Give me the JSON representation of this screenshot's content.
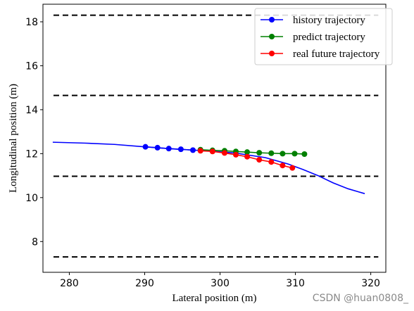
{
  "chart_data": {
    "type": "line",
    "xlabel": "Lateral position (m)",
    "ylabel": "Longitudinal position (m)",
    "xlim": [
      276.5,
      322
    ],
    "ylim": [
      6.6,
      18.8
    ],
    "xticks": [
      280,
      290,
      300,
      310,
      320
    ],
    "yticks": [
      8,
      10,
      12,
      14,
      16,
      18
    ],
    "grid": false,
    "legend_position": "top-right",
    "lane_lines": {
      "style": "dashed",
      "color": "#000000",
      "y": [
        18.3,
        14.65,
        10.97,
        7.3
      ]
    },
    "background_curve": {
      "color": "#0000ff",
      "x": [
        277.8,
        282,
        286,
        290,
        294,
        298,
        302,
        306,
        309,
        311,
        313,
        315,
        317,
        319.2
      ],
      "y": [
        12.52,
        12.48,
        12.42,
        12.31,
        12.21,
        12.13,
        12.03,
        11.82,
        11.53,
        11.28,
        11.0,
        10.67,
        10.4,
        10.18
      ]
    },
    "series": [
      {
        "name": "history trajectory",
        "color": "#0000ff",
        "x": [
          290.1,
          291.7,
          293.2,
          294.8,
          296.4
        ],
        "y": [
          12.31,
          12.27,
          12.23,
          12.2,
          12.16
        ]
      },
      {
        "name": "predict trajectory",
        "color": "#008000",
        "x": [
          297.4,
          299.0,
          300.6,
          302.1,
          303.6,
          305.2,
          306.8,
          308.3,
          309.9,
          311.2
        ],
        "y": [
          12.18,
          12.15,
          12.13,
          12.1,
          12.07,
          12.04,
          12.02,
          12.0,
          12.0,
          11.98
        ]
      },
      {
        "name": "real future trajectory",
        "color": "#ff0000",
        "x": [
          297.4,
          299.0,
          300.6,
          302.1,
          303.6,
          305.2,
          306.8,
          308.3,
          309.6
        ],
        "y": [
          12.13,
          12.1,
          12.03,
          11.95,
          11.86,
          11.72,
          11.62,
          11.46,
          11.35
        ]
      }
    ]
  },
  "watermark": "CSDN @huan0808_"
}
